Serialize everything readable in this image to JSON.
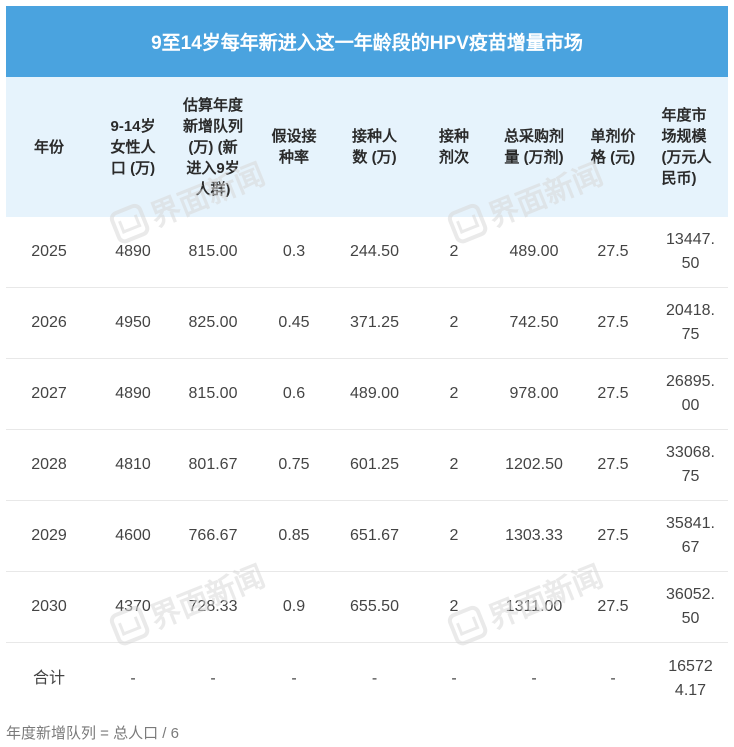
{
  "title": "9至14岁每年新进入这一年龄段的HPV疫苗增量市场",
  "headers": [
    "年份",
    "9-14岁女性人口 (万)",
    "估算年度新增队列 (万) (新进入9岁人群)",
    "假设接种率",
    "接种人数 (万)",
    "接种剂次",
    "总采购剂量 (万剂)",
    "单剂价格 (元)",
    "年度市场规模 (万元人民币)"
  ],
  "rows": [
    [
      "2025",
      "4890",
      "815.00",
      "0.3",
      "244.50",
      "2",
      "489.00",
      "27.5",
      "13447.50"
    ],
    [
      "2026",
      "4950",
      "825.00",
      "0.45",
      "371.25",
      "2",
      "742.50",
      "27.5",
      "20418.75"
    ],
    [
      "2027",
      "4890",
      "815.00",
      "0.6",
      "489.00",
      "2",
      "978.00",
      "27.5",
      "26895.00"
    ],
    [
      "2028",
      "4810",
      "801.67",
      "0.75",
      "601.25",
      "2",
      "1202.50",
      "27.5",
      "33068.75"
    ],
    [
      "2029",
      "4600",
      "766.67",
      "0.85",
      "651.67",
      "2",
      "1303.33",
      "27.5",
      "35841.67"
    ],
    [
      "2030",
      "4370",
      "728.33",
      "0.9",
      "655.50",
      "2",
      "1311.00",
      "27.5",
      "36052.50"
    ],
    [
      "合计",
      "-",
      "-",
      "-",
      "-",
      "-",
      "-",
      "-",
      "165724.17"
    ]
  ],
  "footnote": "年度新增队列 = 总人口 / 6",
  "watermark_text": "界面新闻",
  "colors": {
    "title_bg": "#4aa3df",
    "header_bg": "#e6f3fc",
    "title_text": "#ffffff"
  }
}
